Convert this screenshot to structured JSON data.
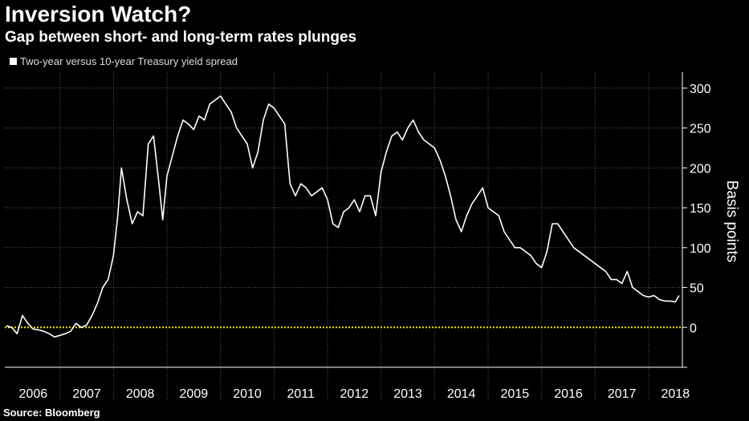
{
  "header": {
    "title": "Inversion Watch?",
    "subtitle": "Gap between short- and long-term rates plunges"
  },
  "legend": {
    "label": "Two-year versus 10-year Treasury yield spread"
  },
  "source": "Source: Bloomberg",
  "colors": {
    "background": "#000000",
    "series": "#ffffff",
    "zero_line": "#f2e600",
    "grid": "#5a5a5a"
  },
  "chart_data": {
    "type": "line",
    "title": "Inversion Watch?",
    "subtitle": "Gap between short- and long-term rates plunges",
    "xlabel": "",
    "ylabel": "Basis points",
    "ylim": [
      -50,
      320
    ],
    "xlim": [
      2005.97,
      2018.63
    ],
    "yticks": [
      0,
      50,
      100,
      150,
      200,
      250,
      300
    ],
    "ytick_labels": [
      "0",
      "50",
      "100",
      "150",
      "200",
      "250",
      "300"
    ],
    "xtick_labels": [
      "2006",
      "2007",
      "2008",
      "2009",
      "2010",
      "2011",
      "2012",
      "2013",
      "2014",
      "2015",
      "2016",
      "2017",
      "2018"
    ],
    "grid": true,
    "reference_line": {
      "y": 0,
      "style": "dotted",
      "color": "#f2e600"
    },
    "series": [
      {
        "name": "Two-year versus 10-year Treasury yield spread",
        "x": [
          2006.0,
          2006.1,
          2006.2,
          2006.3,
          2006.4,
          2006.5,
          2006.6,
          2006.7,
          2006.8,
          2006.9,
          2007.0,
          2007.1,
          2007.2,
          2007.3,
          2007.4,
          2007.5,
          2007.6,
          2007.7,
          2007.8,
          2007.9,
          2008.0,
          2008.08,
          2008.15,
          2008.25,
          2008.35,
          2008.45,
          2008.55,
          2008.65,
          2008.75,
          2008.85,
          2008.92,
          2009.0,
          2009.1,
          2009.2,
          2009.3,
          2009.4,
          2009.5,
          2009.6,
          2009.7,
          2009.8,
          2009.9,
          2010.0,
          2010.1,
          2010.2,
          2010.3,
          2010.4,
          2010.5,
          2010.6,
          2010.7,
          2010.8,
          2010.9,
          2011.0,
          2011.1,
          2011.2,
          2011.3,
          2011.4,
          2011.5,
          2011.6,
          2011.7,
          2011.8,
          2011.9,
          2012.0,
          2012.1,
          2012.2,
          2012.3,
          2012.4,
          2012.5,
          2012.6,
          2012.7,
          2012.8,
          2012.9,
          2013.0,
          2013.1,
          2013.2,
          2013.3,
          2013.4,
          2013.5,
          2013.6,
          2013.7,
          2013.8,
          2013.9,
          2014.0,
          2014.1,
          2014.2,
          2014.3,
          2014.4,
          2014.5,
          2014.6,
          2014.7,
          2014.8,
          2014.9,
          2015.0,
          2015.1,
          2015.2,
          2015.3,
          2015.4,
          2015.5,
          2015.6,
          2015.7,
          2015.8,
          2015.9,
          2016.0,
          2016.1,
          2016.2,
          2016.3,
          2016.4,
          2016.5,
          2016.6,
          2016.7,
          2016.8,
          2016.9,
          2017.0,
          2017.1,
          2017.2,
          2017.3,
          2017.4,
          2017.5,
          2017.6,
          2017.7,
          2017.8,
          2017.9,
          2018.0,
          2018.1,
          2018.2,
          2018.3,
          2018.4,
          2018.5,
          2018.57
        ],
        "values": [
          2,
          0,
          -8,
          15,
          5,
          -2,
          -3,
          -5,
          -8,
          -12,
          -10,
          -8,
          -5,
          5,
          0,
          3,
          15,
          30,
          50,
          60,
          90,
          140,
          200,
          160,
          130,
          145,
          140,
          230,
          240,
          180,
          135,
          190,
          215,
          240,
          260,
          255,
          248,
          265,
          260,
          280,
          285,
          290,
          280,
          270,
          250,
          240,
          230,
          200,
          220,
          260,
          280,
          275,
          265,
          255,
          180,
          165,
          180,
          175,
          165,
          170,
          175,
          160,
          130,
          125,
          145,
          150,
          160,
          145,
          165,
          165,
          140,
          195,
          220,
          240,
          245,
          235,
          250,
          260,
          245,
          235,
          230,
          225,
          210,
          190,
          165,
          135,
          120,
          140,
          155,
          165,
          175,
          150,
          145,
          140,
          120,
          110,
          100,
          100,
          95,
          90,
          80,
          75,
          95,
          130,
          130,
          120,
          110,
          100,
          95,
          90,
          85,
          80,
          75,
          70,
          60,
          60,
          55,
          70,
          50,
          45,
          40,
          38,
          40,
          35,
          33,
          33,
          32,
          40
        ]
      }
    ]
  }
}
